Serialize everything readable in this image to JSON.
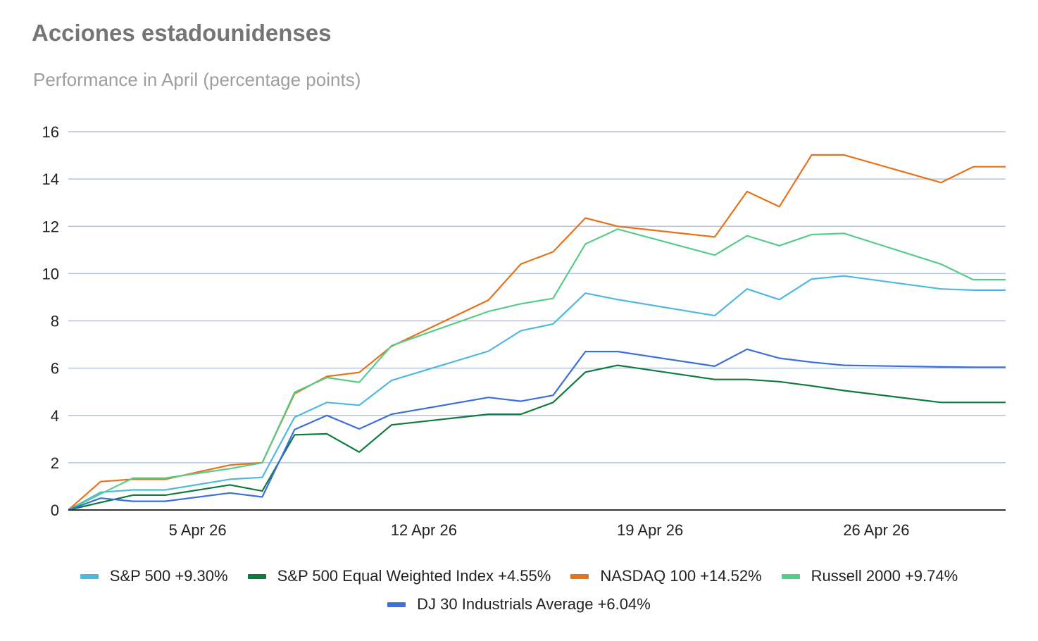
{
  "header": {
    "title": "Acciones estadounidenses",
    "subtitle": "Performance in April (percentage points)"
  },
  "chart_data": {
    "type": "line",
    "title": "Acciones estadounidenses",
    "subtitle": "Performance in April (percentage points)",
    "xlabel": "",
    "ylabel": "",
    "xlim": [
      "2026-04-01",
      "2026-04-30"
    ],
    "ylim": [
      0,
      16
    ],
    "x_ticks": [
      {
        "date": "2026-04-05",
        "label": "5 Apr 26"
      },
      {
        "date": "2026-04-12",
        "label": "12 Apr 26"
      },
      {
        "date": "2026-04-19",
        "label": "19 Apr 26"
      },
      {
        "date": "2026-04-26",
        "label": "26 Apr 26"
      }
    ],
    "y_ticks": [
      0,
      2,
      4,
      6,
      8,
      10,
      12,
      14,
      16
    ],
    "grid": true,
    "legend_position": "bottom",
    "x": [
      "2026-04-01",
      "2026-04-02",
      "2026-04-03",
      "2026-04-04",
      "2026-04-06",
      "2026-04-07",
      "2026-04-08",
      "2026-04-09",
      "2026-04-10",
      "2026-04-11",
      "2026-04-14",
      "2026-04-15",
      "2026-04-16",
      "2026-04-17",
      "2026-04-18",
      "2026-04-21",
      "2026-04-22",
      "2026-04-23",
      "2026-04-24",
      "2026-04-25",
      "2026-04-28",
      "2026-04-29",
      "2026-04-30"
    ],
    "series": [
      {
        "name": "S&P 500 +9.30%",
        "color": "#4fb8e0",
        "values": [
          0,
          0.75,
          0.85,
          0.85,
          1.3,
          1.38,
          3.92,
          4.55,
          4.43,
          5.48,
          6.72,
          7.58,
          7.87,
          9.17,
          8.9,
          8.22,
          9.35,
          8.9,
          9.77,
          9.9,
          9.35,
          9.3,
          9.3
        ]
      },
      {
        "name": "S&P 500 Equal Weighted Index +4.55%",
        "color": "#0e7a3c",
        "values": [
          0,
          0.32,
          0.63,
          0.63,
          1.06,
          0.8,
          3.18,
          3.22,
          2.45,
          3.6,
          4.05,
          4.05,
          4.55,
          5.83,
          6.12,
          5.52,
          5.52,
          5.43,
          5.25,
          5.05,
          4.55,
          4.55,
          4.55
        ]
      },
      {
        "name": "NASDAQ 100 +14.52%",
        "color": "#e8711a",
        "values": [
          0,
          1.2,
          1.3,
          1.3,
          1.9,
          2.0,
          4.92,
          5.65,
          5.82,
          6.92,
          8.88,
          10.4,
          10.92,
          12.35,
          12.0,
          11.55,
          13.47,
          12.83,
          15.02,
          15.02,
          13.85,
          14.52,
          14.52
        ]
      },
      {
        "name": "Russell 2000 +9.74%",
        "color": "#57cc89",
        "values": [
          0,
          0.68,
          1.35,
          1.35,
          1.75,
          2.0,
          4.98,
          5.6,
          5.4,
          6.95,
          8.4,
          8.72,
          8.95,
          11.25,
          11.88,
          10.78,
          11.6,
          11.18,
          11.65,
          11.7,
          10.4,
          9.74,
          9.74
        ]
      },
      {
        "name": "DJ 30 Industrials Average +6.04%",
        "color": "#3b6fd9",
        "values": [
          0,
          0.5,
          0.37,
          0.37,
          0.72,
          0.55,
          3.4,
          4.0,
          3.43,
          4.05,
          4.76,
          4.6,
          4.85,
          6.7,
          6.7,
          6.08,
          6.8,
          6.42,
          6.25,
          6.12,
          6.05,
          6.04,
          6.04
        ]
      }
    ]
  }
}
